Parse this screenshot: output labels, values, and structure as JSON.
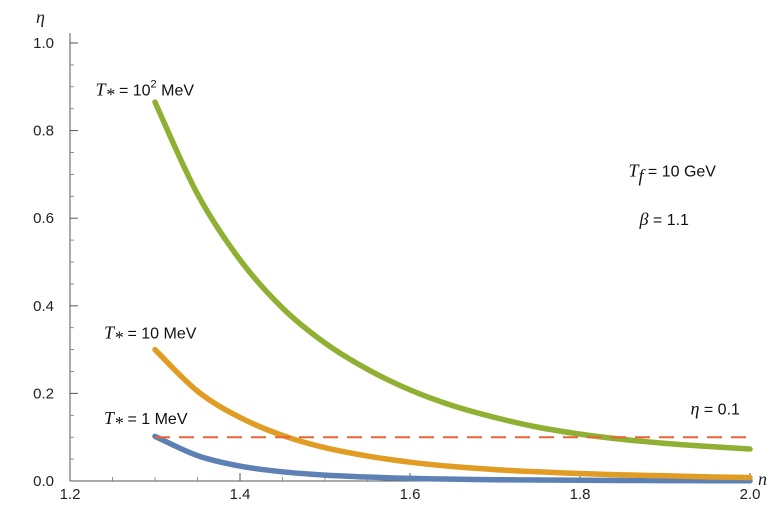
{
  "chart_data": {
    "type": "line",
    "xlabel": "n",
    "ylabel": "η",
    "xlim": [
      1.2,
      2.0
    ],
    "ylim": [
      0.0,
      1.0
    ],
    "x_ticks": [
      "1.2",
      "1.4",
      "1.6",
      "1.8",
      "2.0"
    ],
    "y_ticks": [
      "0.0",
      "0.2",
      "0.4",
      "0.6",
      "0.8",
      "1.0"
    ],
    "grid": false,
    "series": [
      {
        "name": "T* = 1 MeV",
        "color": "#5e81b5",
        "x": [
          1.3,
          1.35,
          1.4,
          1.45,
          1.5,
          1.55,
          1.6,
          1.65,
          1.7,
          1.75,
          1.8,
          1.85,
          1.9,
          1.95,
          2.0
        ],
        "y": [
          0.102,
          0.058,
          0.034,
          0.021,
          0.0135,
          0.009,
          0.006,
          0.0042,
          0.003,
          0.0022,
          0.0016,
          0.0012,
          0.0009,
          0.0007,
          0.0005
        ]
      },
      {
        "name": "T* = 10 MeV",
        "color": "#e19c24",
        "x": [
          1.3,
          1.35,
          1.4,
          1.45,
          1.5,
          1.55,
          1.6,
          1.65,
          1.7,
          1.75,
          1.8,
          1.85,
          1.9,
          1.95,
          2.0
        ],
        "y": [
          0.3,
          0.205,
          0.145,
          0.104,
          0.076,
          0.057,
          0.043,
          0.033,
          0.026,
          0.021,
          0.017,
          0.014,
          0.012,
          0.0095,
          0.008
        ]
      },
      {
        "name": "T* = 10^2 MeV",
        "color": "#8fb032",
        "x": [
          1.3,
          1.35,
          1.4,
          1.45,
          1.5,
          1.55,
          1.6,
          1.65,
          1.7,
          1.75,
          1.8,
          1.85,
          1.9,
          1.95,
          2.0
        ],
        "y": [
          0.865,
          0.655,
          0.505,
          0.395,
          0.315,
          0.255,
          0.208,
          0.172,
          0.145,
          0.123,
          0.107,
          0.095,
          0.086,
          0.079,
          0.073
        ]
      },
      {
        "name": "η = 0.1",
        "color": "#eb6235",
        "dashed": true,
        "x": [
          1.3,
          2.0
        ],
        "y": [
          0.1,
          0.1
        ]
      }
    ],
    "annotations": [
      {
        "id": "t100",
        "prefix": "T",
        "sub": "*",
        "mid": " = 10",
        "sup": "2",
        "suffix": " MeV",
        "x": 1.23,
        "y": 0.88
      },
      {
        "id": "t10",
        "prefix": "T",
        "sub": "*",
        "mid": " = 10 MeV",
        "sup": "",
        "suffix": "",
        "x": 1.24,
        "y": 0.325
      },
      {
        "id": "t1",
        "prefix": "T",
        "sub": "*",
        "mid": " = 1 MeV",
        "sup": "",
        "suffix": "",
        "x": 1.24,
        "y": 0.13
      },
      {
        "id": "eta",
        "prefix": "η",
        "sub": "",
        "mid": " = 0.1",
        "sup": "",
        "suffix": "",
        "x": 1.93,
        "y": 0.152
      },
      {
        "id": "tf",
        "prefix": "T",
        "sub": "f",
        "mid": " = 10 GeV",
        "sup": "",
        "suffix": "",
        "x": 1.857,
        "y": 0.695
      },
      {
        "id": "beta",
        "prefix": "β",
        "sub": "",
        "mid": " = 1.1",
        "sup": "",
        "suffix": "",
        "x": 1.87,
        "y": 0.585
      }
    ]
  }
}
